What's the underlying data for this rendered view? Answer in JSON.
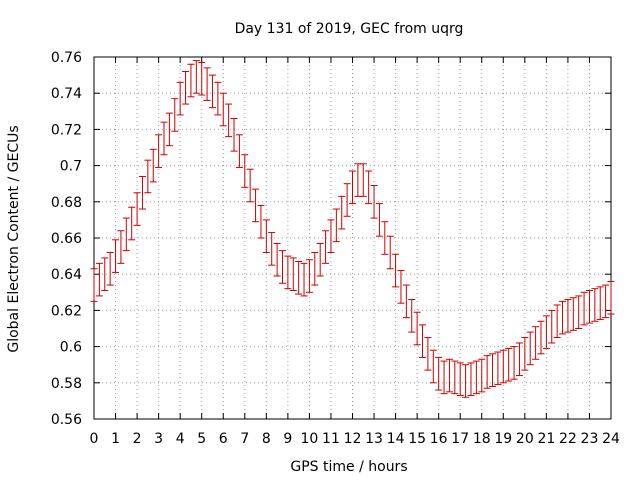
{
  "chart_data": {
    "type": "line",
    "title": "Day 131 of 2019, GEC from uqrg",
    "xlabel": "GPS time / hours",
    "ylabel": "Global Electron Content / GECUs",
    "xlim": [
      0,
      24
    ],
    "ylim": [
      0.56,
      0.76
    ],
    "x_ticks": [
      0,
      1,
      2,
      3,
      4,
      5,
      6,
      7,
      8,
      9,
      10,
      11,
      12,
      13,
      14,
      15,
      16,
      17,
      18,
      19,
      20,
      21,
      22,
      23,
      24
    ],
    "x_tick_labels": [
      "0",
      "1",
      "2",
      "3",
      "4",
      "5",
      "6",
      "7",
      "8",
      "9",
      "10",
      "11",
      "12",
      "13",
      "14",
      "15",
      "16",
      "17",
      "18",
      "19",
      "20",
      "21",
      "22",
      "23",
      "24"
    ],
    "y_ticks": [
      0.56,
      0.58,
      0.6,
      0.62,
      0.64,
      0.66,
      0.68,
      0.7,
      0.72,
      0.74,
      0.76
    ],
    "y_tick_labels": [
      "0.56",
      "0.58",
      "0.6",
      "0.62",
      "0.64",
      "0.66",
      "0.68",
      "0.7",
      "0.72",
      "0.74",
      "0.76"
    ],
    "grid": true,
    "series": [
      {
        "name": "GEC",
        "style": "errorbars",
        "color": "#cc0000",
        "error": 0.009,
        "x": [
          0,
          0.25,
          0.5,
          0.75,
          1,
          1.25,
          1.5,
          1.75,
          2,
          2.25,
          2.5,
          2.75,
          3,
          3.25,
          3.5,
          3.75,
          4,
          4.25,
          4.5,
          4.75,
          5,
          5.25,
          5.5,
          5.75,
          6,
          6.25,
          6.5,
          6.75,
          7,
          7.25,
          7.5,
          7.75,
          8,
          8.25,
          8.5,
          8.75,
          9,
          9.25,
          9.5,
          9.75,
          10,
          10.25,
          10.5,
          10.75,
          11,
          11.25,
          11.5,
          11.75,
          12,
          12.25,
          12.5,
          12.75,
          13,
          13.25,
          13.5,
          13.75,
          14,
          14.25,
          14.5,
          14.75,
          15,
          15.25,
          15.5,
          15.75,
          16,
          16.25,
          16.5,
          16.75,
          17,
          17.25,
          17.5,
          17.75,
          18,
          18.25,
          18.5,
          18.75,
          19,
          19.25,
          19.5,
          19.75,
          20,
          20.25,
          20.5,
          20.75,
          21,
          21.25,
          21.5,
          21.75,
          22,
          22.25,
          22.5,
          22.75,
          23,
          23.25,
          23.5,
          23.75,
          24
        ],
        "y": [
          0.634,
          0.637,
          0.64,
          0.643,
          0.65,
          0.655,
          0.662,
          0.668,
          0.676,
          0.685,
          0.694,
          0.7,
          0.708,
          0.715,
          0.72,
          0.728,
          0.737,
          0.743,
          0.747,
          0.749,
          0.748,
          0.745,
          0.741,
          0.737,
          0.731,
          0.725,
          0.717,
          0.708,
          0.697,
          0.689,
          0.678,
          0.669,
          0.661,
          0.654,
          0.648,
          0.644,
          0.641,
          0.64,
          0.638,
          0.637,
          0.639,
          0.643,
          0.648,
          0.655,
          0.661,
          0.667,
          0.674,
          0.681,
          0.688,
          0.692,
          0.692,
          0.688,
          0.68,
          0.67,
          0.66,
          0.652,
          0.642,
          0.633,
          0.625,
          0.617,
          0.61,
          0.603,
          0.596,
          0.589,
          0.585,
          0.583,
          0.584,
          0.583,
          0.582,
          0.581,
          0.582,
          0.583,
          0.584,
          0.586,
          0.587,
          0.588,
          0.589,
          0.59,
          0.591,
          0.593,
          0.596,
          0.599,
          0.602,
          0.605,
          0.608,
          0.611,
          0.614,
          0.616,
          0.617,
          0.618,
          0.619,
          0.621,
          0.622,
          0.623,
          0.624,
          0.625,
          0.627
        ]
      }
    ]
  }
}
